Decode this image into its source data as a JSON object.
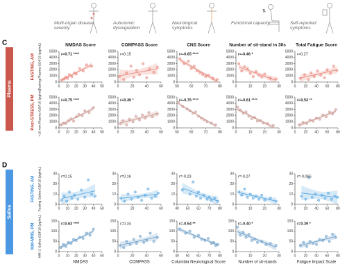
{
  "header": {
    "icons": [
      "Multi-organ disease severity",
      "Autonomic dysregulation",
      "Neurological symptoms",
      "Functional capacity",
      "Self-reported symptoms"
    ]
  },
  "sections": [
    {
      "letter": "C",
      "name": "Plasma",
      "color": "#c0392b"
    },
    {
      "letter": "D",
      "name": "Saliva",
      "color": "#2e86de"
    }
  ],
  "chart_data": [
    {
      "type": "scatter",
      "title": "NMDAS Score",
      "condition": "FASTING, AM",
      "y_label": "Fasting Plasma GDF15 (pg/mL)",
      "annotation": "r=0.71 ****",
      "color": "#e8877b",
      "x": [
        3,
        6,
        8,
        10,
        12,
        15,
        18,
        20,
        24,
        28,
        32,
        38
      ],
      "y": [
        300,
        500,
        800,
        600,
        1200,
        900,
        1500,
        1300,
        2200,
        1800,
        2800,
        2600
      ],
      "xlim": [
        0,
        50
      ],
      "xticks": [
        0,
        10,
        20,
        30,
        40,
        50
      ],
      "ylim": [
        0,
        5000
      ],
      "yticks": [
        0,
        1000,
        2000,
        3000,
        4000,
        5000
      ]
    },
    {
      "type": "scatter",
      "title": "COMPASS Score",
      "annotation": "r=0.15",
      "color": "#e8877b",
      "x": [
        2,
        8,
        12,
        18,
        22,
        26,
        30,
        35,
        40,
        44,
        50,
        55
      ],
      "y": [
        900,
        400,
        1500,
        2600,
        800,
        1900,
        1200,
        3000,
        700,
        2100,
        1600,
        2400
      ],
      "xlim": [
        0,
        60
      ],
      "xticks": [
        0,
        20,
        40,
        60
      ],
      "ylim": [
        0,
        5000
      ],
      "yticks": [
        0,
        1000,
        2000,
        3000,
        4000,
        5000
      ]
    },
    {
      "type": "scatter",
      "title": "CNS Score",
      "annotation": "r=-0.65 ****",
      "color": "#e8877b",
      "x": [
        52,
        55,
        58,
        60,
        62,
        64,
        66,
        68,
        70,
        72,
        75,
        78
      ],
      "y": [
        3800,
        3000,
        3400,
        2200,
        2600,
        1800,
        1500,
        1200,
        900,
        1100,
        600,
        400
      ],
      "xlim": [
        50,
        80
      ],
      "xticks": [
        50,
        60,
        70,
        80
      ],
      "ylim": [
        0,
        5000
      ],
      "yticks": [
        0,
        1000,
        2000,
        3000,
        4000,
        5000
      ]
    },
    {
      "type": "scatter",
      "title": "Number of sit-stand in 30s",
      "annotation": "r=-0.46 *",
      "color": "#e8877b",
      "x": [
        2,
        4,
        6,
        8,
        10,
        12,
        14,
        16,
        18,
        20,
        24,
        28
      ],
      "y": [
        3000,
        1800,
        2500,
        2200,
        1400,
        900,
        1700,
        1100,
        800,
        1300,
        600,
        500
      ],
      "xlim": [
        0,
        30
      ],
      "xticks": [
        0,
        10,
        20,
        30
      ],
      "ylim": [
        0,
        5000
      ],
      "yticks": [
        0,
        1000,
        2000,
        3000,
        4000,
        5000
      ]
    },
    {
      "type": "scatter",
      "title": "Total Fatigue Score",
      "annotation": "r=0.27",
      "color": "#e8877b",
      "x": [
        10,
        18,
        25,
        30,
        36,
        42,
        48,
        55,
        60,
        66,
        72,
        78
      ],
      "y": [
        600,
        1200,
        400,
        1500,
        900,
        1800,
        1100,
        700,
        2000,
        1400,
        2600,
        1900
      ],
      "xlim": [
        0,
        80
      ],
      "xticks": [
        0,
        20,
        40,
        60,
        80
      ],
      "ylim": [
        0,
        5000
      ],
      "yticks": [
        0,
        1000,
        2000,
        3000,
        4000,
        5000
      ]
    },
    {
      "type": "scatter",
      "condition": "Post-STRESS, PM",
      "y_label": "+10 min Plasma GDF15 (pg/mL)",
      "annotation": "r=0.75 ****",
      "color": "#c9968f",
      "x": [
        2,
        5,
        8,
        11,
        14,
        17,
        20,
        23,
        27,
        30,
        35,
        40
      ],
      "y": [
        500,
        800,
        700,
        1200,
        1500,
        1100,
        1800,
        2200,
        2000,
        2800,
        2500,
        3300
      ],
      "xlim": [
        0,
        50
      ],
      "xticks": [
        0,
        10,
        20,
        30,
        40,
        50
      ],
      "ylim": [
        0,
        5000
      ],
      "yticks": [
        0,
        1000,
        2000,
        3000,
        4000,
        5000
      ]
    },
    {
      "type": "scatter",
      "annotation": "r=0.36 *",
      "color": "#c9968f",
      "x": [
        3,
        7,
        12,
        16,
        21,
        25,
        30,
        34,
        38,
        43,
        48,
        55
      ],
      "y": [
        700,
        1200,
        500,
        1400,
        1000,
        1900,
        1300,
        2100,
        1600,
        2500,
        1800,
        2300
      ],
      "xlim": [
        0,
        60
      ],
      "xticks": [
        0,
        20,
        40,
        60
      ],
      "ylim": [
        0,
        5000
      ],
      "yticks": [
        0,
        1000,
        2000,
        3000,
        4000,
        5000
      ]
    },
    {
      "type": "scatter",
      "annotation": "r=-0.76 ****",
      "color": "#c9968f",
      "x": [
        51,
        54,
        57,
        59,
        61,
        63,
        65,
        67,
        69,
        71,
        74,
        77
      ],
      "y": [
        4200,
        3500,
        3100,
        2800,
        2400,
        2600,
        1900,
        1600,
        1300,
        1000,
        800,
        500
      ],
      "xlim": [
        50,
        80
      ],
      "xticks": [
        50,
        60,
        70,
        80
      ],
      "ylim": [
        0,
        5000
      ],
      "yticks": [
        0,
        1000,
        2000,
        3000,
        4000,
        5000
      ]
    },
    {
      "type": "scatter",
      "annotation": "r=-0.61 ****",
      "color": "#c9968f",
      "x": [
        1,
        3,
        5,
        7,
        9,
        11,
        13,
        15,
        17,
        19,
        22,
        26
      ],
      "y": [
        3400,
        2900,
        2400,
        2600,
        1900,
        1500,
        1700,
        1100,
        1200,
        800,
        700,
        400
      ],
      "xlim": [
        0,
        30
      ],
      "xticks": [
        0,
        10,
        20,
        30
      ],
      "ylim": [
        0,
        5000
      ],
      "yticks": [
        0,
        1000,
        2000,
        3000,
        4000,
        5000
      ]
    },
    {
      "type": "scatter",
      "annotation": "r=0.53 **",
      "color": "#c9968f",
      "x": [
        8,
        15,
        22,
        28,
        34,
        40,
        46,
        52,
        58,
        64,
        70,
        76
      ],
      "y": [
        500,
        900,
        700,
        1300,
        1100,
        1600,
        1400,
        2100,
        1800,
        2600,
        2300,
        3000
      ],
      "xlim": [
        0,
        80
      ],
      "xticks": [
        0,
        20,
        40,
        60,
        80
      ],
      "ylim": [
        0,
        5000
      ],
      "yticks": [
        0,
        1000,
        2000,
        3000,
        4000,
        5000
      ]
    },
    {
      "type": "scatter",
      "condition": "FASTING, AM",
      "y_label": "Fasting Saliva GDF15 (pg/mL)",
      "annotation": "r=0.15",
      "color": "#5aa7e0",
      "x": [
        3,
        6,
        9,
        12,
        15,
        18,
        22,
        26,
        30,
        34,
        38,
        42
      ],
      "y": [
        4,
        8,
        3,
        12,
        6,
        9,
        5,
        14,
        7,
        24,
        10,
        8
      ],
      "xlim": [
        0,
        50
      ],
      "xticks": [
        0,
        10,
        20,
        30,
        40,
        50
      ],
      "ylim": [
        0,
        30
      ],
      "yticks": [
        0,
        10,
        20,
        30
      ]
    },
    {
      "type": "scatter",
      "annotation": "r=0.16",
      "color": "#5aa7e0",
      "x": [
        4,
        9,
        14,
        19,
        24,
        28,
        33,
        38,
        42,
        47,
        52,
        56
      ],
      "y": [
        6,
        3,
        10,
        5,
        12,
        7,
        4,
        9,
        15,
        6,
        8,
        11
      ],
      "xlim": [
        0,
        60
      ],
      "xticks": [
        0,
        20,
        40,
        60
      ],
      "ylim": [
        0,
        30
      ],
      "yticks": [
        0,
        10,
        20,
        30
      ]
    },
    {
      "type": "scatter",
      "annotation": "r=-0.23",
      "color": "#5aa7e0",
      "x": [
        45,
        52,
        55,
        58,
        60,
        62,
        65,
        68,
        70,
        72,
        75,
        78
      ],
      "y": [
        14,
        10,
        22,
        8,
        12,
        6,
        9,
        5,
        7,
        4,
        6,
        3
      ],
      "xlim": [
        40,
        80
      ],
      "xticks": [
        40,
        50,
        60,
        70,
        80
      ],
      "ylim": [
        0,
        30
      ],
      "yticks": [
        0,
        10,
        20,
        30
      ]
    },
    {
      "type": "scatter",
      "annotation": "r=-0.27",
      "color": "#5aa7e0",
      "x": [
        2,
        4,
        6,
        8,
        10,
        12,
        14,
        16,
        18,
        20,
        24,
        28
      ],
      "y": [
        12,
        9,
        15,
        7,
        10,
        6,
        8,
        5,
        9,
        4,
        6,
        3
      ],
      "xlim": [
        0,
        30
      ],
      "xticks": [
        0,
        10,
        20,
        30
      ],
      "ylim": [
        0,
        30
      ],
      "yticks": [
        0,
        10,
        20,
        30
      ]
    },
    {
      "type": "scatter",
      "annotation": "r=-0.066",
      "color": "#5aa7e0",
      "x": [
        12,
        20,
        26,
        32,
        38,
        44,
        50,
        56,
        62,
        68,
        74,
        79
      ],
      "y": [
        8,
        5,
        26,
        7,
        10,
        4,
        9,
        6,
        11,
        5,
        8,
        7
      ],
      "xlim": [
        0,
        80
      ],
      "xticks": [
        0,
        20,
        40,
        60,
        80
      ],
      "ylim": [
        0,
        30
      ],
      "yticks": [
        0,
        10,
        20,
        30
      ]
    },
    {
      "type": "scatter",
      "condition": "Mid-MMS, PM",
      "y_label": "MRI 2 Saliva GDF15 (pg/mL)",
      "x_label": "NMDAS",
      "annotation": "r=0.63 ****",
      "color": "#6d9ec9",
      "x": [
        2,
        5,
        8,
        11,
        14,
        17,
        20,
        24,
        28,
        32,
        36,
        40
      ],
      "y": [
        20,
        35,
        25,
        45,
        40,
        60,
        55,
        70,
        65,
        90,
        80,
        110
      ],
      "xlim": [
        0,
        50
      ],
      "xticks": [
        0,
        10,
        20,
        30,
        40,
        50
      ],
      "ylim": [
        0,
        150
      ],
      "yticks": [
        0,
        50,
        100,
        150
      ]
    },
    {
      "type": "scatter",
      "x_label": "COMPASS",
      "annotation": "r=0.34",
      "color": "#6d9ec9",
      "x": [
        3,
        8,
        12,
        17,
        22,
        26,
        31,
        36,
        40,
        45,
        50,
        55
      ],
      "y": [
        30,
        20,
        50,
        35,
        60,
        40,
        75,
        45,
        55,
        90,
        50,
        70
      ],
      "xlim": [
        0,
        60
      ],
      "xticks": [
        0,
        20,
        40,
        60
      ],
      "ylim": [
        0,
        150
      ],
      "yticks": [
        0,
        50,
        100,
        150
      ]
    },
    {
      "type": "scatter",
      "x_label": "Columbia Neurological Score",
      "annotation": "r=-0.54 **",
      "color": "#6d9ec9",
      "x": [
        42,
        48,
        52,
        56,
        60,
        63,
        66,
        69,
        72,
        74,
        76,
        78
      ],
      "y": [
        110,
        90,
        100,
        70,
        80,
        60,
        55,
        65,
        40,
        45,
        30,
        35
      ],
      "xlim": [
        40,
        80
      ],
      "xticks": [
        40,
        50,
        60,
        70,
        80
      ],
      "ylim": [
        0,
        150
      ],
      "yticks": [
        0,
        50,
        100,
        150
      ]
    },
    {
      "type": "scatter",
      "x_label": "Number of sit-stands",
      "annotation": "r=-0.40 *",
      "color": "#6d9ec9",
      "x": [
        1,
        3,
        5,
        7,
        9,
        11,
        13,
        15,
        18,
        21,
        24,
        28
      ],
      "y": [
        120,
        80,
        95,
        70,
        85,
        55,
        60,
        45,
        50,
        35,
        40,
        30
      ],
      "xlim": [
        0,
        30
      ],
      "xticks": [
        0,
        10,
        20,
        30
      ],
      "ylim": [
        0,
        150
      ],
      "yticks": [
        0,
        50,
        100,
        150
      ]
    },
    {
      "type": "scatter",
      "x_label": "Fatigue Impact Scale",
      "annotation": "r=0.39 *",
      "color": "#6d9ec9",
      "x": [
        10,
        16,
        22,
        28,
        34,
        40,
        46,
        52,
        58,
        64,
        70,
        76
      ],
      "y": [
        30,
        45,
        25,
        50,
        40,
        35,
        60,
        55,
        75,
        50,
        85,
        70
      ],
      "xlim": [
        0,
        80
      ],
      "xticks": [
        0,
        20,
        40,
        60,
        80
      ],
      "ylim": [
        0,
        150
      ],
      "yticks": [
        0,
        50,
        100,
        150
      ]
    }
  ]
}
